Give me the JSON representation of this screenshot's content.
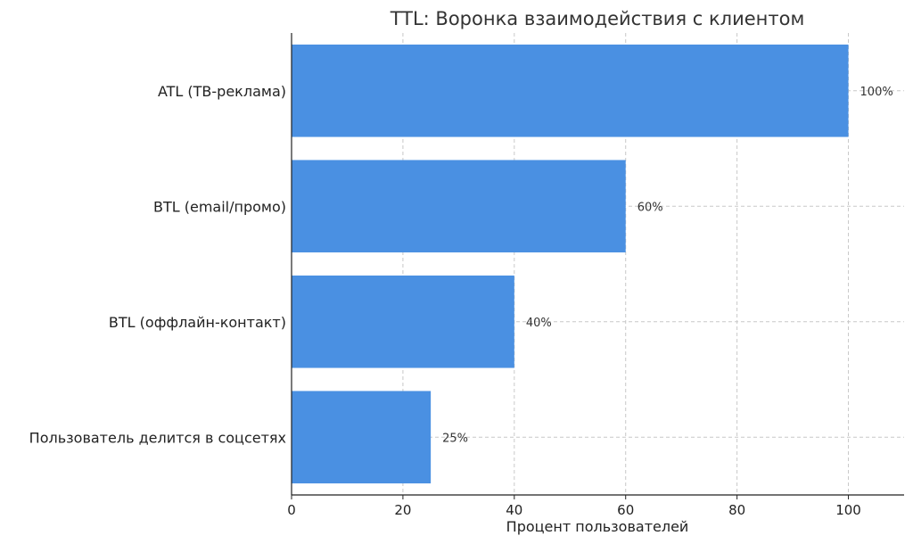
{
  "chart_data": {
    "type": "bar",
    "orientation": "horizontal",
    "title": "TTL: Воронка взаимодействия с клиентом",
    "xlabel": "Процент пользователей",
    "ylabel": "",
    "categories": [
      "ATL (ТВ-реклама)",
      "BTL (email/промо)",
      "BTL (оффлайн-контакт)",
      "Пользователь делится в соцсетях"
    ],
    "values": [
      100,
      60,
      40,
      25
    ],
    "data_labels": [
      "100%",
      "60%",
      "40%",
      "25%"
    ],
    "xlim": [
      0,
      110
    ],
    "xticks": [
      0,
      20,
      40,
      60,
      80,
      100
    ],
    "grid": true,
    "bar_color": "#4a90e2"
  }
}
